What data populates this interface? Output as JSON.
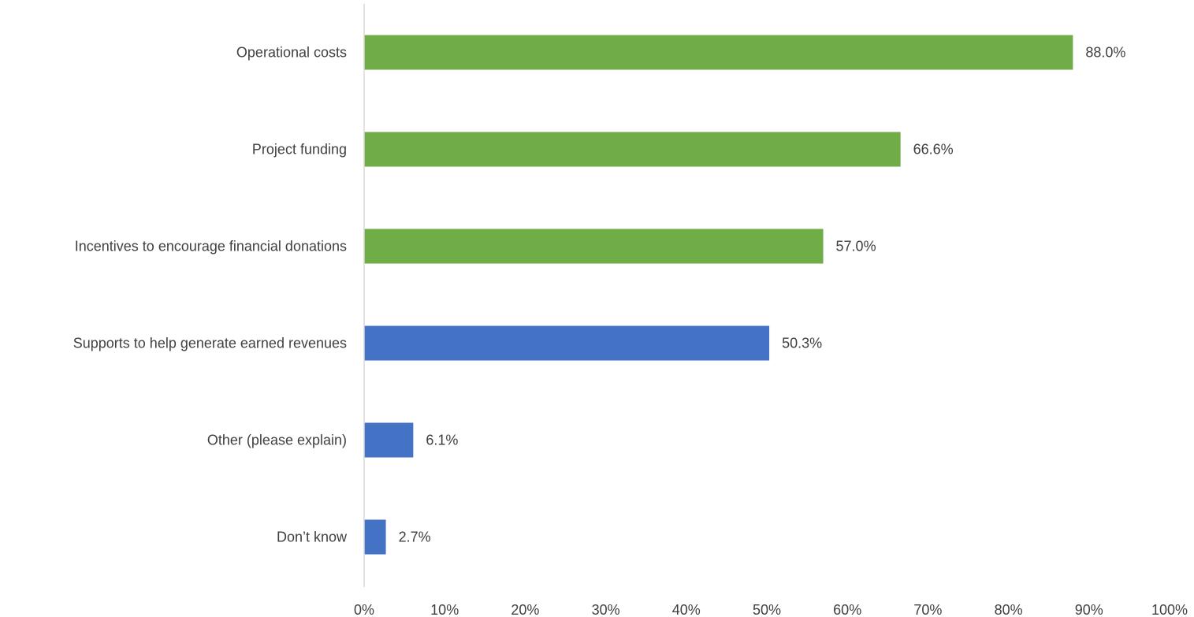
{
  "chart_data": {
    "type": "bar",
    "orientation": "horizontal",
    "title": "",
    "xlabel": "",
    "ylabel": "",
    "xlim": [
      0,
      100
    ],
    "x_ticks": [
      "0%",
      "10%",
      "20%",
      "30%",
      "40%",
      "50%",
      "60%",
      "70%",
      "80%",
      "90%",
      "100%"
    ],
    "grid": false,
    "legend": "none",
    "categories": [
      "Operational costs",
      "Project funding",
      "Incentives to encourage financial donations",
      "Supports to help generate earned revenues",
      "Other (please explain)",
      "Don’t know"
    ],
    "values": [
      88.0,
      66.6,
      57.0,
      50.3,
      6.1,
      2.7
    ],
    "value_labels": [
      "88.0%",
      "66.6%",
      "57.0%",
      "50.3%",
      "6.1%",
      "2.7%"
    ],
    "bar_colors": [
      "#70AD47",
      "#70AD47",
      "#70AD47",
      "#4472C4",
      "#4472C4",
      "#4472C4"
    ],
    "axis_color": "#D9D9D9",
    "text_color": "#404040"
  }
}
